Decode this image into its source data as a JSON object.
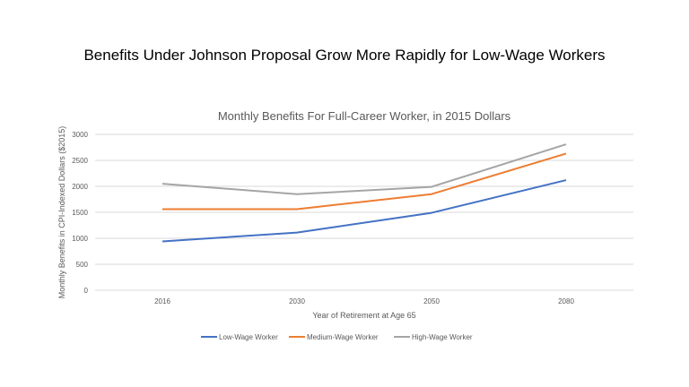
{
  "heading": "Benefits Under Johnson Proposal Grow More Rapidly for Low-Wage Workers",
  "chart_data": {
    "type": "line",
    "title": "Monthly Benefits For Full-Career Worker, in 2015 Dollars",
    "xlabel": "Year of Retirement at Age 65",
    "ylabel": "Monthly Benefits in CPI-Indexed Dollars ($2015)",
    "categories": [
      "2016",
      "2030",
      "2050",
      "2080"
    ],
    "ylim": [
      0,
      3000
    ],
    "yticks": [
      0,
      500,
      1000,
      1500,
      2000,
      2500,
      3000
    ],
    "grid": true,
    "legend": "bottom",
    "series": [
      {
        "name": "Low-Wage Worker",
        "color": "#4472c4",
        "values": [
          940,
          1110,
          1490,
          2120
        ]
      },
      {
        "name": "Medium-Wage Worker",
        "color": "#ed7d31",
        "values": [
          1560,
          1560,
          1850,
          2630
        ]
      },
      {
        "name": "High-Wage Worker",
        "color": "#a5a5a5",
        "values": [
          2050,
          1850,
          1990,
          2810
        ]
      }
    ]
  }
}
